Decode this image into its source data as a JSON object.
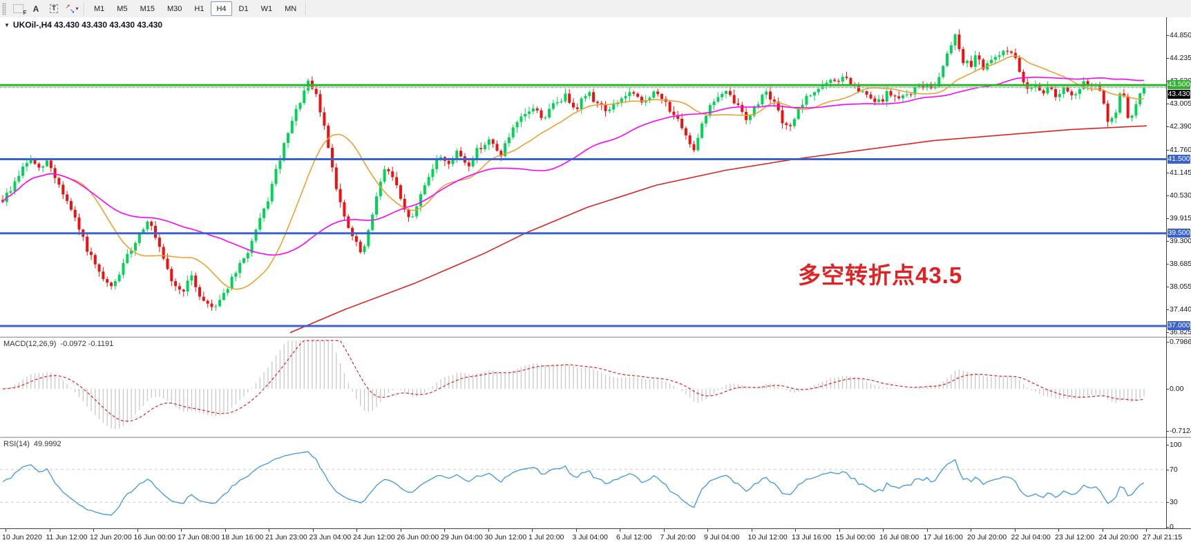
{
  "toolbar": {
    "icons": [
      {
        "name": "chart-shift-icon",
        "glyph": "F"
      },
      {
        "name": "text-label-icon",
        "glyph": "A"
      },
      {
        "name": "text-tool-icon",
        "glyph": "T"
      },
      {
        "name": "arrow-tools-icon",
        "glyph": "arrows"
      },
      {
        "name": "dropdown-caret-icon",
        "glyph": "▾"
      }
    ],
    "timeframes": [
      "M1",
      "M5",
      "M15",
      "M30",
      "H1",
      "H4",
      "D1",
      "W1",
      "MN"
    ],
    "active_timeframe": "H4"
  },
  "chart": {
    "collapse_icon": "▼",
    "title": "UKOil-,H4  43.430 43.430 43.430 43.430",
    "annotation": {
      "text": "多空转折点43.5",
      "color": "#e02222"
    }
  },
  "chart_data": {
    "type": "candlestick",
    "symbol": "UKOil-",
    "timeframe": "H4",
    "current_ohlc": {
      "open": 43.43,
      "high": 43.43,
      "low": 43.43,
      "close": 43.43
    },
    "price_range": [
      36.72,
      45.33
    ],
    "price_ticks": [
      "44.850",
      "44.235",
      "43.620",
      "43.005",
      "42.390",
      "41.760",
      "41.145",
      "40.530",
      "39.915",
      "39.300",
      "38.685",
      "38.055",
      "37.440",
      "36.825"
    ],
    "time_ticks": [
      "10 Jun 2020",
      "11 Jun 12:00",
      "12 Jun 20:00",
      "16 Jun 00:00",
      "17 Jun 08:00",
      "18 Jun 16:00",
      "21 Jun 23:00",
      "23 Jun 04:00",
      "24 Jun 12:00",
      "26 Jun 00:00",
      "29 Jun 04:00",
      "30 Jun 12:00",
      "1 Jul 20:00",
      "3 Jul 04:00",
      "6 Jul 12:00",
      "7 Jul 20:00",
      "9 Jul 04:00",
      "10 Jul 12:00",
      "13 Jul 16:00",
      "15 Jul 00:00",
      "16 Jul 08:00",
      "17 Jul 16:00",
      "20 Jul 20:00",
      "22 Jul 04:00",
      "23 Jul 12:00",
      "24 Jul 20:00",
      "27 Jul 21:15"
    ],
    "levels": [
      {
        "price": 43.5,
        "label": "43.500",
        "color": "#2db32d",
        "thickness": 3
      },
      {
        "price": 43.445,
        "label": null,
        "color": "#93c293",
        "thickness": 1
      },
      {
        "price": 41.5,
        "label": "41.500",
        "color": "#3a62cf",
        "thickness": 3
      },
      {
        "price": 39.5,
        "label": "39.500",
        "color": "#3a62cf",
        "thickness": 3
      },
      {
        "price": 37.0,
        "label": "37.000",
        "color": "#3a62cf",
        "thickness": 3
      }
    ],
    "current_price": {
      "value": 43.43,
      "label": "43.430",
      "label_bg": "#000000",
      "line_color": "#b5b5b5"
    },
    "candle_colors": {
      "up": "#00d455",
      "down": "#ee1111"
    },
    "bars": 285,
    "seed": 9,
    "noise": 0.09,
    "wick": 0.13,
    "price_path": [
      [
        0,
        40.4
      ],
      [
        12,
        40.7
      ],
      [
        25,
        41.2
      ],
      [
        38,
        41.5
      ],
      [
        50,
        41.2
      ],
      [
        62,
        41.45
      ],
      [
        75,
        40.9
      ],
      [
        90,
        40.3
      ],
      [
        105,
        39.6
      ],
      [
        120,
        38.9
      ],
      [
        135,
        38.3
      ],
      [
        150,
        38.0
      ],
      [
        165,
        38.6
      ],
      [
        180,
        39.2
      ],
      [
        200,
        39.9
      ],
      [
        215,
        39.1
      ],
      [
        230,
        38.3
      ],
      [
        245,
        37.9
      ],
      [
        260,
        38.3
      ],
      [
        275,
        37.7
      ],
      [
        290,
        37.5
      ],
      [
        305,
        37.9
      ],
      [
        320,
        38.4
      ],
      [
        335,
        38.9
      ],
      [
        350,
        39.6
      ],
      [
        365,
        40.4
      ],
      [
        380,
        41.4
      ],
      [
        395,
        42.3
      ],
      [
        408,
        43.0
      ],
      [
        420,
        43.55
      ],
      [
        432,
        43.2
      ],
      [
        445,
        42.2
      ],
      [
        458,
        40.9
      ],
      [
        470,
        39.9
      ],
      [
        482,
        39.4
      ],
      [
        495,
        38.9
      ],
      [
        505,
        39.6
      ],
      [
        515,
        40.6
      ],
      [
        528,
        41.3
      ],
      [
        540,
        40.9
      ],
      [
        552,
        40.1
      ],
      [
        565,
        39.9
      ],
      [
        578,
        40.7
      ],
      [
        590,
        41.2
      ],
      [
        602,
        41.6
      ],
      [
        615,
        41.4
      ],
      [
        628,
        41.7
      ],
      [
        640,
        41.3
      ],
      [
        655,
        41.8
      ],
      [
        670,
        42.0
      ],
      [
        685,
        41.6
      ],
      [
        700,
        42.2
      ],
      [
        715,
        42.6
      ],
      [
        730,
        42.9
      ],
      [
        745,
        42.6
      ],
      [
        760,
        43.0
      ],
      [
        775,
        43.2
      ],
      [
        790,
        42.9
      ],
      [
        805,
        43.3
      ],
      [
        820,
        43.0
      ],
      [
        835,
        42.8
      ],
      [
        850,
        43.1
      ],
      [
        865,
        43.3
      ],
      [
        880,
        43.0
      ],
      [
        895,
        43.3
      ],
      [
        910,
        43.1
      ],
      [
        925,
        42.7
      ],
      [
        940,
        42.1
      ],
      [
        952,
        41.8
      ],
      [
        965,
        42.6
      ],
      [
        980,
        43.1
      ],
      [
        995,
        43.3
      ],
      [
        1010,
        43.0
      ],
      [
        1025,
        42.6
      ],
      [
        1040,
        43.0
      ],
      [
        1052,
        43.4
      ],
      [
        1065,
        42.9
      ],
      [
        1078,
        42.3
      ],
      [
        1090,
        42.6
      ],
      [
        1102,
        43.0
      ],
      [
        1115,
        43.3
      ],
      [
        1130,
        43.5
      ],
      [
        1145,
        43.6
      ],
      [
        1160,
        43.7
      ],
      [
        1175,
        43.4
      ],
      [
        1190,
        43.2
      ],
      [
        1205,
        43.0
      ],
      [
        1220,
        43.3
      ],
      [
        1235,
        43.1
      ],
      [
        1250,
        43.3
      ],
      [
        1265,
        43.5
      ],
      [
        1280,
        43.4
      ],
      [
        1292,
        43.8
      ],
      [
        1302,
        44.5
      ],
      [
        1312,
        44.85
      ],
      [
        1322,
        44.2
      ],
      [
        1332,
        44.0
      ],
      [
        1342,
        44.4
      ],
      [
        1352,
        43.9
      ],
      [
        1362,
        44.15
      ],
      [
        1372,
        44.3
      ],
      [
        1382,
        44.5
      ],
      [
        1392,
        44.35
      ],
      [
        1402,
        43.7
      ],
      [
        1412,
        43.45
      ],
      [
        1422,
        43.55
      ],
      [
        1432,
        43.3
      ],
      [
        1442,
        43.45
      ],
      [
        1452,
        43.2
      ],
      [
        1462,
        43.4
      ],
      [
        1472,
        43.15
      ],
      [
        1482,
        43.35
      ],
      [
        1492,
        43.6
      ],
      [
        1502,
        43.5
      ],
      [
        1512,
        43.4
      ],
      [
        1522,
        42.45
      ],
      [
        1532,
        42.6
      ],
      [
        1542,
        43.5
      ],
      [
        1552,
        42.4
      ],
      [
        1562,
        43.1
      ],
      [
        1572,
        43.43
      ]
    ],
    "ma_fast": {
      "period": 18,
      "color": "#efa030"
    },
    "ma_mid": {
      "period": 55,
      "color": "#ff00ff"
    },
    "ma_slow": {
      "color": "#e02020",
      "path": [
        [
          420,
          36.82
        ],
        [
          500,
          37.45
        ],
        [
          600,
          38.15
        ],
        [
          700,
          38.95
        ],
        [
          760,
          39.5
        ],
        [
          850,
          40.2
        ],
        [
          950,
          40.8
        ],
        [
          1050,
          41.2
        ],
        [
          1150,
          41.5
        ],
        [
          1250,
          41.75
        ],
        [
          1350,
          42.0
        ],
        [
          1450,
          42.15
        ],
        [
          1550,
          42.3
        ],
        [
          1660,
          42.4
        ]
      ]
    },
    "macd": {
      "label": "MACD(12,26,9)",
      "values": "-0.0972 -0.1191",
      "fast": 12,
      "slow": 26,
      "signal": 9,
      "ticks": [
        {
          "value": 0.7986,
          "label": "0.7986"
        },
        {
          "value": 0,
          "label": "0.00"
        },
        {
          "value": -0.7124,
          "label": "-0.7124"
        }
      ],
      "histogram_color": "#c8c8c8",
      "signal_color": "#e02020"
    },
    "rsi": {
      "label": "RSI(14)",
      "value": "49.9992",
      "period": 14,
      "color": "#3b97e3",
      "ticks": [
        {
          "value": 100,
          "label": "100"
        },
        {
          "value": 70,
          "label": "70"
        },
        {
          "value": 30,
          "label": "30"
        },
        {
          "value": 0,
          "label": "0"
        }
      ],
      "guides": [
        70,
        30
      ]
    }
  }
}
